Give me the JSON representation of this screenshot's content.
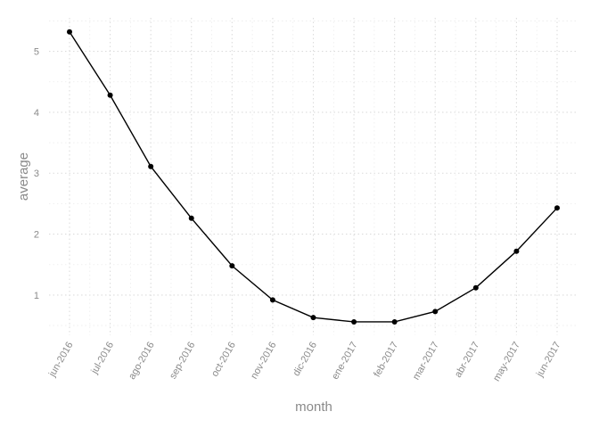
{
  "chart_data": {
    "type": "line",
    "xlabel": "month",
    "ylabel": "average",
    "categories": [
      "jun-2016",
      "jul-2016",
      "ago-2016",
      "sep-2016",
      "oct-2016",
      "nov-2016",
      "dic-2016",
      "ene-2017",
      "feb-2017",
      "mar-2017",
      "abr-2017",
      "may-2017",
      "jun-2017"
    ],
    "values": [
      5.32,
      4.28,
      3.11,
      2.26,
      1.48,
      0.92,
      0.63,
      0.56,
      0.56,
      0.73,
      1.12,
      1.72,
      2.43
    ],
    "yticks": [
      "1",
      "2",
      "3",
      "4",
      "5"
    ],
    "ylim": [
      0.34,
      5.55
    ],
    "grid": true,
    "colors": {
      "line": "#000000",
      "point": "#000000",
      "grid": "#dcdcdc",
      "text": "#8a8a8a"
    }
  }
}
